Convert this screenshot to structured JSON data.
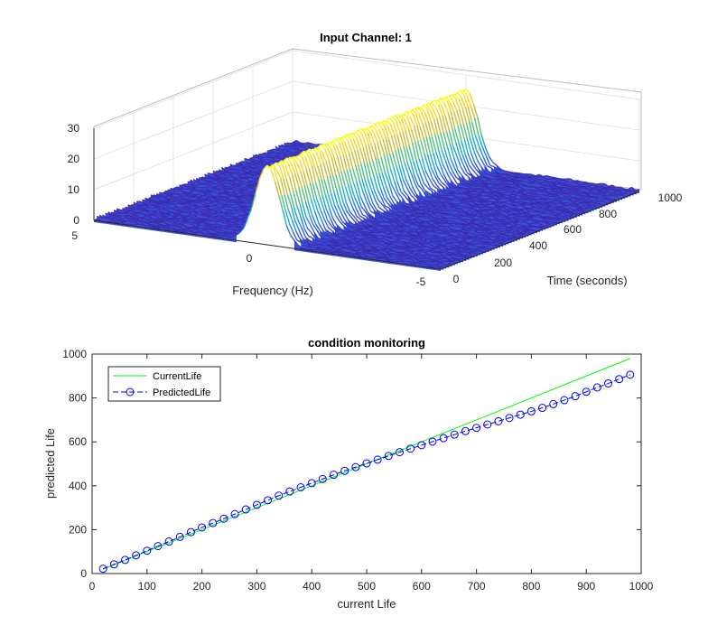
{
  "chart_data": [
    {
      "type": "surface",
      "title": "Input Channel: 1",
      "xlabel": "Frequency (Hz)",
      "ylabel": "Time (seconds)",
      "zlabel": "",
      "freq_ticks": [
        "5",
        "0",
        "-5"
      ],
      "time_ticks": [
        "0",
        "200",
        "400",
        "600",
        "800",
        "1000"
      ],
      "z_ticks": [
        "0",
        "10",
        "20",
        "30"
      ],
      "xlim": [
        -5,
        5
      ],
      "ylim": [
        0,
        1000
      ],
      "zlim": [
        0,
        30
      ],
      "peak_frequency": 0,
      "peak_magnitude": 25,
      "noise_floor": 1,
      "colormap": [
        "#3e26a8",
        "#2f68f4",
        "#1ba2d6",
        "#25c0a1",
        "#9ec13b",
        "#f9b52f",
        "#f9fb15"
      ]
    },
    {
      "type": "line",
      "title": "condition monitoring",
      "xlabel": "current Life",
      "ylabel": "predicted Life",
      "xlim": [
        0,
        1000
      ],
      "ylim": [
        0,
        1000
      ],
      "x_ticks": [
        "0",
        "100",
        "200",
        "300",
        "400",
        "500",
        "600",
        "700",
        "800",
        "900",
        "1000"
      ],
      "y_ticks": [
        "0",
        "200",
        "400",
        "600",
        "800",
        "1000"
      ],
      "legend_position": "top-left",
      "series": [
        {
          "name": "CurrentLife",
          "color": "#00ff00",
          "style": "solid",
          "marker": "none",
          "x": [
            20,
            980
          ],
          "y": [
            20,
            980
          ]
        },
        {
          "name": "PredictedLife",
          "color": "#0000ff",
          "style": "dashed",
          "marker": "circle",
          "x": [
            20,
            40,
            60,
            80,
            100,
            120,
            140,
            160,
            180,
            200,
            220,
            240,
            260,
            280,
            300,
            320,
            340,
            360,
            380,
            400,
            420,
            440,
            460,
            480,
            500,
            520,
            540,
            560,
            580,
            600,
            620,
            640,
            660,
            680,
            700,
            720,
            740,
            760,
            780,
            800,
            820,
            840,
            860,
            880,
            900,
            920,
            940,
            960,
            980
          ],
          "y": [
            22,
            42,
            62,
            83,
            104,
            125,
            146,
            167,
            189,
            210,
            230,
            250,
            271,
            292,
            313,
            334,
            355,
            374,
            393,
            412,
            431,
            450,
            468,
            485,
            502,
            519,
            536,
            553,
            569,
            585,
            601,
            617,
            633,
            649,
            664,
            679,
            694,
            709,
            724,
            739,
            755,
            772,
            790,
            808,
            828,
            848,
            866,
            886,
            906
          ]
        }
      ]
    }
  ]
}
